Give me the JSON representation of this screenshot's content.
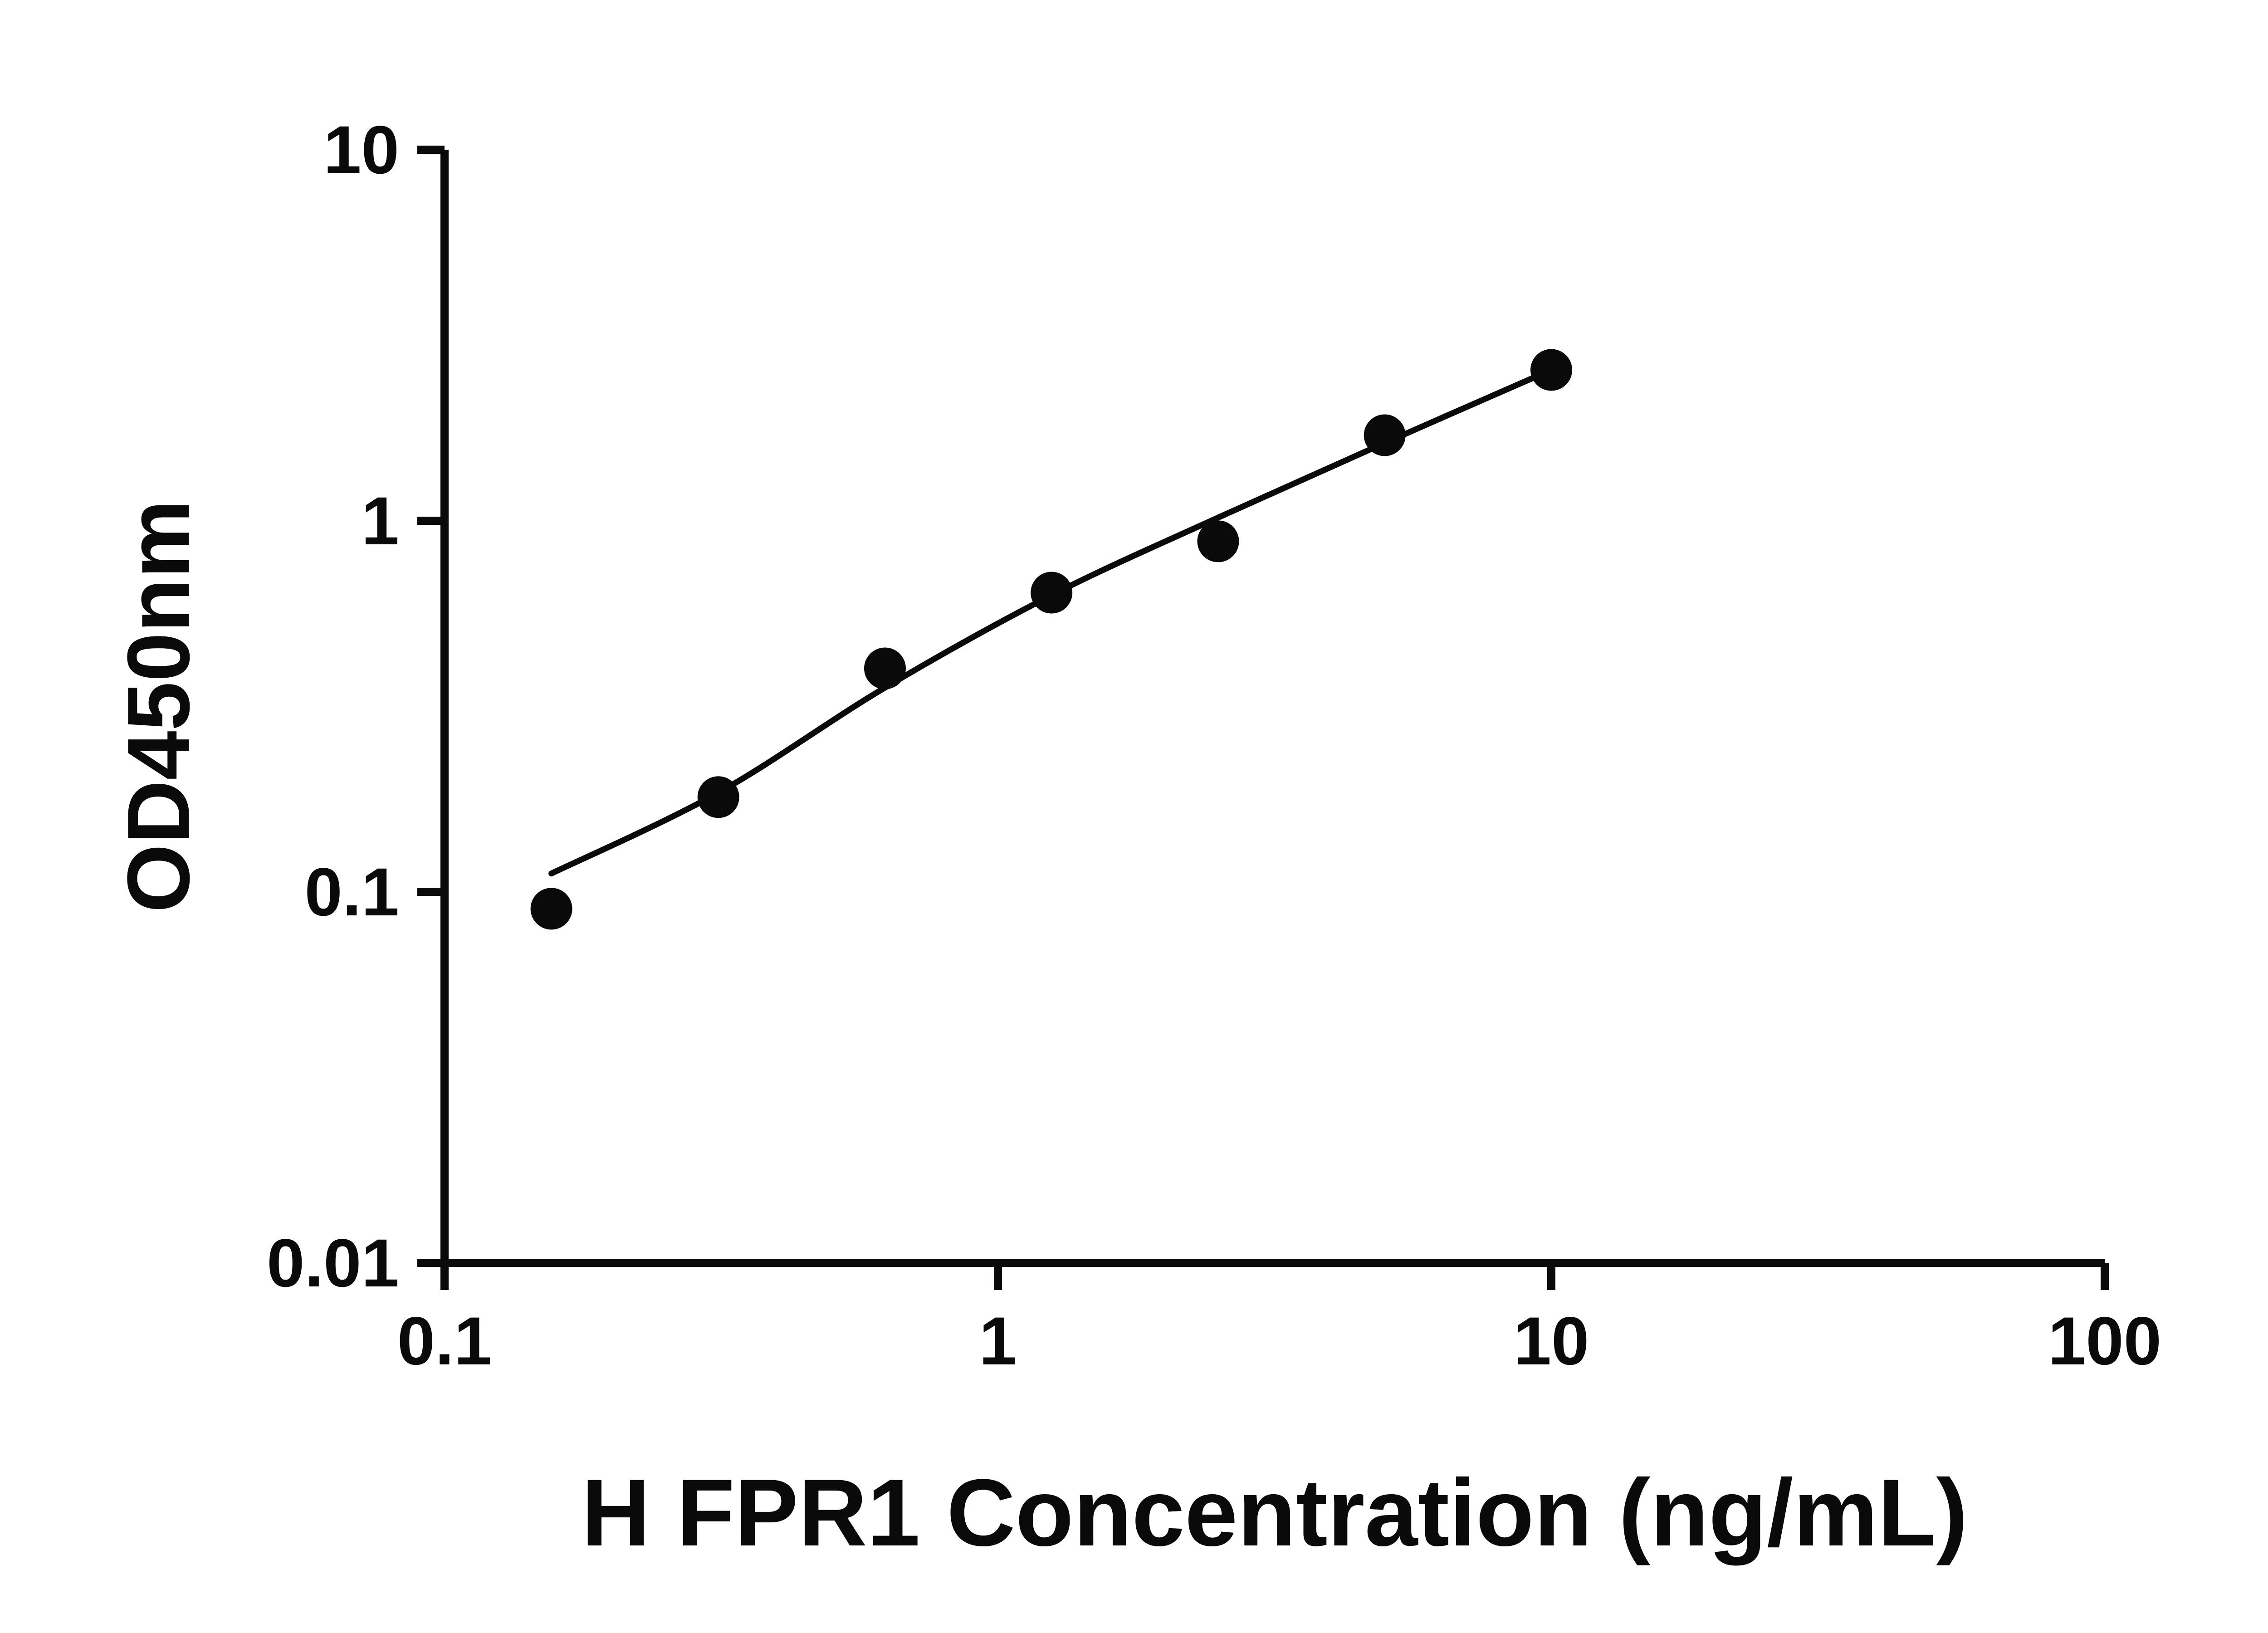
{
  "figure": {
    "background": "#ffffff"
  },
  "chart_data": {
    "type": "scatter",
    "title": "",
    "xlabel": "H FPR1 Concentration (ng/mL)",
    "ylabel": "OD450nm",
    "x_scale": "log",
    "y_scale": "log",
    "xlim": [
      0.1,
      100
    ],
    "ylim": [
      0.01,
      10
    ],
    "grid": false,
    "legend": "none",
    "x_ticks": [
      {
        "value": 0.1,
        "label": "0.1"
      },
      {
        "value": 1,
        "label": "1"
      },
      {
        "value": 10,
        "label": "10"
      },
      {
        "value": 100,
        "label": "100"
      }
    ],
    "y_ticks": [
      {
        "value": 0.01,
        "label": "0.01"
      },
      {
        "value": 0.1,
        "label": "0.1"
      },
      {
        "value": 1,
        "label": "1"
      },
      {
        "value": 10,
        "label": "10"
      }
    ],
    "points": [
      {
        "x": 0.156,
        "y": 0.09
      },
      {
        "x": 0.3125,
        "y": 0.18
      },
      {
        "x": 0.625,
        "y": 0.4
      },
      {
        "x": 1.25,
        "y": 0.64
      },
      {
        "x": 2.5,
        "y": 0.88
      },
      {
        "x": 5,
        "y": 1.7
      },
      {
        "x": 10,
        "y": 2.55
      }
    ],
    "fit_line": [
      {
        "x": 0.156,
        "y": 0.112
      },
      {
        "x": 0.3125,
        "y": 0.185
      },
      {
        "x": 0.625,
        "y": 0.355
      },
      {
        "x": 1.25,
        "y": 0.63
      },
      {
        "x": 2.5,
        "y": 1.02
      },
      {
        "x": 5,
        "y": 1.62
      },
      {
        "x": 10,
        "y": 2.55
      }
    ],
    "point_color": "#0a0a0a",
    "line_color": "#0a0a0a",
    "axis_color": "#0a0a0a"
  }
}
